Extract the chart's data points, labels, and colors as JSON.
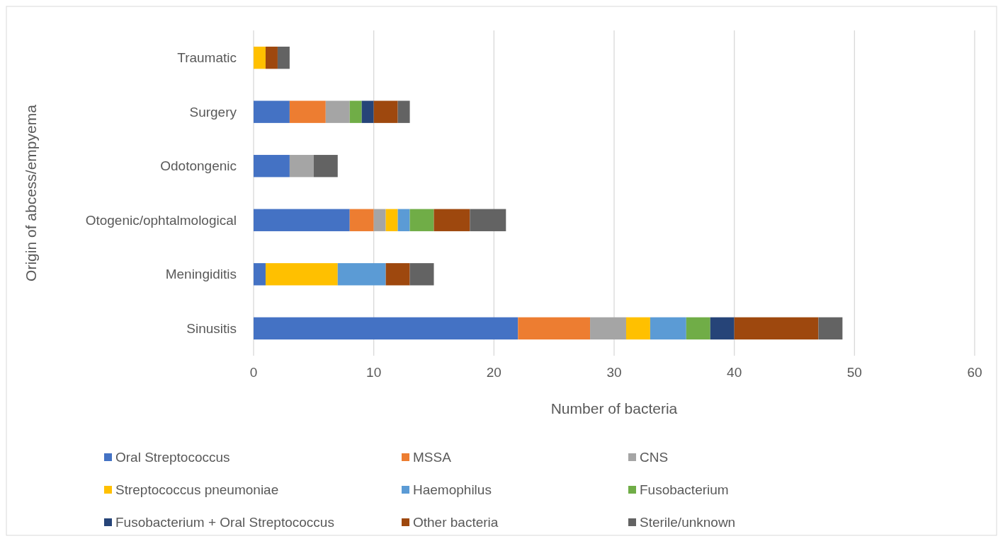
{
  "chart_data": {
    "type": "bar",
    "orientation": "horizontal",
    "stacked": true,
    "xlabel": "Number of bacteria",
    "ylabel": "Origin of abcess/empyema",
    "categories": [
      "Traumatic",
      "Surgery",
      "Odotongenic",
      "Otogenic/ophtalmological",
      "Meningiditis",
      "Sinusitis"
    ],
    "xlim": [
      0,
      60
    ],
    "xticks": [
      0,
      10,
      20,
      30,
      40,
      50,
      60
    ],
    "grid": "x",
    "legend": "bottom",
    "series": [
      {
        "name": "Oral Streptococcus",
        "color": "#4472c4",
        "values": [
          0,
          3,
          3,
          8,
          1,
          22
        ]
      },
      {
        "name": "MSSA",
        "color": "#ed7d31",
        "values": [
          0,
          3,
          0,
          2,
          0,
          6
        ]
      },
      {
        "name": "CNS",
        "color": "#a5a5a5",
        "values": [
          0,
          2,
          2,
          1,
          0,
          3
        ]
      },
      {
        "name": "Streptococcus pneumoniae",
        "color": "#ffc000",
        "values": [
          1,
          0,
          0,
          1,
          6,
          2
        ]
      },
      {
        "name": "Haemophilus",
        "color": "#5b9bd5",
        "values": [
          0,
          0,
          0,
          1,
          4,
          3
        ]
      },
      {
        "name": "Fusobacterium",
        "color": "#70ad47",
        "values": [
          0,
          1,
          0,
          2,
          0,
          2
        ]
      },
      {
        "name": "Fusobacterium + Oral Streptococcus",
        "color": "#264478",
        "values": [
          0,
          1,
          0,
          0,
          0,
          2
        ]
      },
      {
        "name": "Other bacteria",
        "color": "#9e480e",
        "values": [
          1,
          2,
          0,
          3,
          2,
          7
        ]
      },
      {
        "name": "Sterile/unknown",
        "color": "#636363",
        "values": [
          1,
          1,
          2,
          3,
          2,
          2
        ]
      }
    ]
  }
}
